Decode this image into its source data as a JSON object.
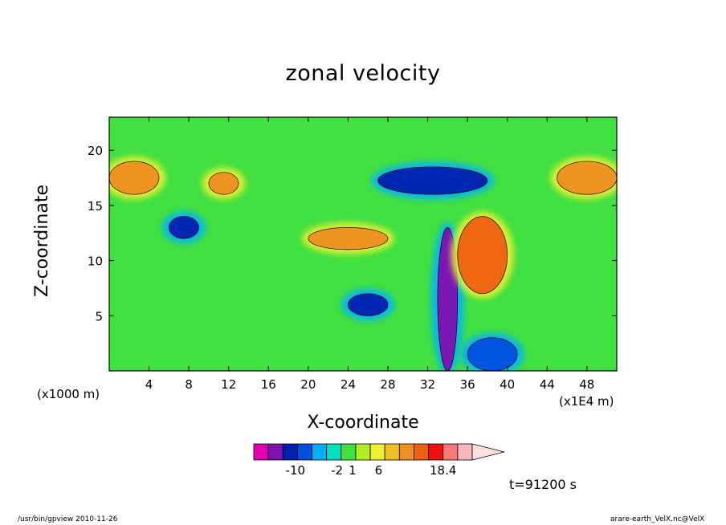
{
  "chart_data": {
    "type": "heatmap",
    "title": "zonal velocity",
    "xlabel": "X-coordinate",
    "ylabel": "Z-coordinate",
    "x_unit_label": "(x1000 m)",
    "x_scale_label": "(x1E4 m)",
    "xlim": [
      0,
      51
    ],
    "ylim": [
      0,
      23
    ],
    "x_ticks": [
      4,
      8,
      12,
      16,
      20,
      24,
      28,
      32,
      36,
      40,
      44,
      48
    ],
    "x_tick_labels": [
      "4",
      "8",
      "12",
      "16",
      "20",
      "24",
      "28",
      "32",
      "36",
      "40",
      "44",
      "48"
    ],
    "y_ticks": [
      5,
      10,
      15,
      20
    ],
    "y_tick_labels": [
      "5",
      "10",
      "15",
      "20"
    ],
    "time_label": "t=91200 s",
    "colorbar": {
      "colors": [
        "#e000b0",
        "#8010b0",
        "#0020b0",
        "#0050e0",
        "#00b0ff",
        "#00e0c0",
        "#40e040",
        "#b0f020",
        "#f0f030",
        "#f0c020",
        "#f09020",
        "#f06010",
        "#f01010",
        "#f87878",
        "#fbb8b8",
        "#fde0e0"
      ],
      "tick_labels": [
        "-10",
        "-2",
        "1",
        "6",
        "18.4"
      ],
      "tick_positions": [
        -10,
        -2,
        1,
        6,
        18.4
      ],
      "range": [
        -18,
        24
      ]
    },
    "regions": [
      {
        "level": "positive",
        "x": [
          0,
          5
        ],
        "y": [
          16,
          19
        ],
        "value": 6
      },
      {
        "level": "positive",
        "x": [
          10,
          13
        ],
        "y": [
          16,
          18
        ],
        "value": 6
      },
      {
        "level": "positive",
        "x": [
          45,
          51
        ],
        "y": [
          16,
          19
        ],
        "value": 6
      },
      {
        "level": "negative",
        "x": [
          27,
          38
        ],
        "y": [
          16,
          18.5
        ],
        "value": -6
      },
      {
        "level": "negative",
        "x": [
          6,
          9
        ],
        "y": [
          12,
          14
        ],
        "value": -6
      },
      {
        "level": "negative",
        "x": [
          24,
          28
        ],
        "y": [
          5,
          7
        ],
        "value": -6
      },
      {
        "level": "negative",
        "x": [
          33,
          35
        ],
        "y": [
          0,
          13
        ],
        "value": -10
      },
      {
        "level": "positive",
        "x": [
          35,
          40
        ],
        "y": [
          7,
          14
        ],
        "value": 10
      },
      {
        "level": "positive",
        "x": [
          20,
          28
        ],
        "y": [
          11,
          13
        ],
        "value": 6
      },
      {
        "level": "negative",
        "x": [
          36,
          41
        ],
        "y": [
          0,
          3
        ],
        "value": -4
      }
    ]
  },
  "footer": {
    "left": "/usr/bin/gpview   2010-11-26",
    "right": "arare-earth_VelX.nc@VelX"
  }
}
